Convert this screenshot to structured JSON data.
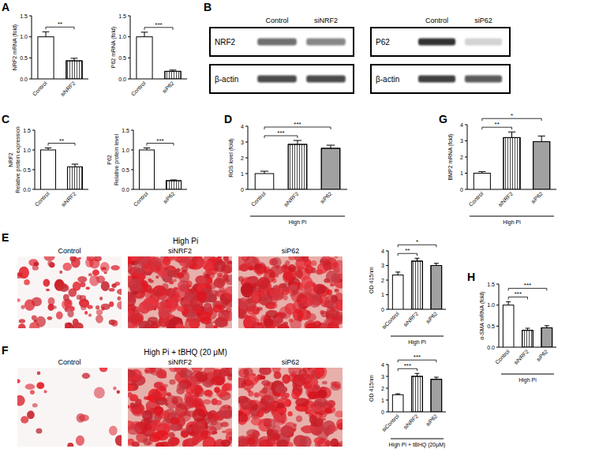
{
  "panel_letters": [
    "A",
    "B",
    "C",
    "D",
    "E",
    "F",
    "G",
    "H"
  ],
  "blots": [
    {
      "columns": [
        "Control",
        "siNRF2"
      ],
      "rows": [
        "NRF2",
        "β-actin"
      ]
    },
    {
      "columns": [
        "Control",
        "siP62"
      ],
      "rows": [
        "P62",
        "β-actin"
      ]
    }
  ],
  "stainings": [
    {
      "title": "High Pi",
      "columns": [
        "Control",
        "siNRF2",
        "siP62"
      ]
    },
    {
      "title": "High Pi + tBHQ (20 μM)",
      "columns": [
        "Control",
        "siNRF2",
        "siP62"
      ]
    }
  ],
  "chart_data": [
    {
      "type": "bar",
      "ylabel": "NRF2 mRNA (fold)",
      "categories": [
        "Control",
        "siNRF2"
      ],
      "values": [
        1.0,
        0.43
      ],
      "errors": [
        0.12,
        0.06
      ],
      "colors": [
        "#ffffff",
        "#ffffff"
      ],
      "ylim": [
        0,
        1.5
      ],
      "yticks": [
        {
          "value": 0,
          "label": "0.0"
        },
        {
          "value": 0.5,
          "label": "0.5"
        },
        {
          "value": 1,
          "label": "1.0"
        },
        {
          "value": 1.5,
          "label": "1.5"
        }
      ],
      "annotations": [
        {
          "text": "**",
          "from": 0,
          "to": 1
        }
      ]
    },
    {
      "type": "bar",
      "ylabel": "P62 mRNA (fold)",
      "categories": [
        "Control",
        "siP62"
      ],
      "values": [
        1.0,
        0.18
      ],
      "errors": [
        0.11,
        0.03
      ],
      "colors": [
        "#ffffff",
        "#ffffff"
      ],
      "ylim": [
        0,
        1.5
      ],
      "yticks": [
        {
          "value": 0,
          "label": "0.0"
        },
        {
          "value": 0.5,
          "label": "0.5"
        },
        {
          "value": 1,
          "label": "1.0"
        },
        {
          "value": 1.5,
          "label": "1.5"
        }
      ],
      "annotations": [
        {
          "text": "***",
          "from": 0,
          "to": 1
        }
      ]
    },
    {
      "type": "bar",
      "title": "NRF2",
      "ylabel": "Relative protein expression",
      "categories": [
        "Control",
        "siNRF2"
      ],
      "values": [
        1.0,
        0.57
      ],
      "errors": [
        0.05,
        0.07
      ],
      "colors": [
        "#ffffff",
        "#ffffff"
      ],
      "ylim": [
        0,
        1.5
      ],
      "yticks": [
        {
          "value": 0,
          "label": "0.0"
        },
        {
          "value": 0.5,
          "label": "0.5"
        },
        {
          "value": 1,
          "label": "1.0"
        },
        {
          "value": 1.5,
          "label": "1.5"
        }
      ],
      "annotations": [
        {
          "text": "**",
          "from": 0,
          "to": 1
        }
      ]
    },
    {
      "type": "bar",
      "title": "P62",
      "ylabel": "Relative protein level",
      "categories": [
        "Control",
        "siP62"
      ],
      "values": [
        1.0,
        0.22
      ],
      "errors": [
        0.05,
        0.02
      ],
      "colors": [
        "#ffffff",
        "#ffffff"
      ],
      "ylim": [
        0,
        1.5
      ],
      "yticks": [
        {
          "value": 0,
          "label": "0.0"
        },
        {
          "value": 0.5,
          "label": "0.5"
        },
        {
          "value": 1,
          "label": "1.0"
        },
        {
          "value": 1.5,
          "label": "1.5"
        }
      ],
      "annotations": [
        {
          "text": "***",
          "from": 0,
          "to": 1
        }
      ]
    },
    {
      "type": "bar",
      "ylabel": "ROS level (fold)",
      "xlabel": "High Pi",
      "categories": [
        "Control",
        "siNRF2",
        "siP62"
      ],
      "values": [
        1.0,
        2.85,
        2.6
      ],
      "errors": [
        0.15,
        0.25,
        0.2
      ],
      "colors": [
        "#ffffff",
        "#ffffff",
        "#ffffff"
      ],
      "ylim": [
        0,
        4
      ],
      "yticks": [
        0,
        1,
        2,
        3,
        4
      ],
      "annotations": [
        {
          "text": "***",
          "from": 0,
          "to": 1
        },
        {
          "text": "***",
          "from": 0,
          "to": 2
        }
      ]
    },
    {
      "type": "bar",
      "ylabel": "BMP2 mRNA (fold)",
      "xlabel": "High Pi",
      "categories": [
        "Control",
        "siNRF2",
        "siP62"
      ],
      "values": [
        1.0,
        3.2,
        2.95
      ],
      "errors": [
        0.1,
        0.35,
        0.35
      ],
      "colors": [
        "#ffffff",
        "#ffffff",
        "#ffffff"
      ],
      "ylim": [
        0,
        4
      ],
      "yticks": [
        0,
        1,
        2,
        3,
        4
      ],
      "annotations": [
        {
          "text": "**",
          "from": 0,
          "to": 1
        },
        {
          "text": "*",
          "from": 0,
          "to": 2
        }
      ]
    },
    {
      "type": "bar",
      "ylabel": "OD 415nm",
      "xlabel": "High Pi",
      "categories": [
        "siControl",
        "siNRF2",
        "siP62"
      ],
      "values": [
        2.35,
        3.3,
        3.0
      ],
      "errors": [
        0.2,
        0.2,
        0.15
      ],
      "colors": [
        "#ffffff",
        "#ffffff",
        "#ffffff"
      ],
      "ylim": [
        0,
        4
      ],
      "yticks": [
        0,
        1,
        2,
        3,
        4
      ],
      "annotations": [
        {
          "text": "**",
          "from": 0,
          "to": 1
        },
        {
          "text": "*",
          "from": 0,
          "to": 2
        }
      ]
    },
    {
      "type": "bar",
      "ylabel": "OD 415nm",
      "xlabel": "High Pi + tBHQ (20μM)",
      "categories": [
        "siControl",
        "siNRF2",
        "siP62"
      ],
      "values": [
        1.45,
        3.0,
        2.75
      ],
      "errors": [
        0.08,
        0.25,
        0.18
      ],
      "colors": [
        "#ffffff",
        "#ffffff",
        "#ffffff"
      ],
      "ylim": [
        0,
        4
      ],
      "yticks": [
        0,
        1,
        2,
        3,
        4
      ],
      "annotations": [
        {
          "text": "***",
          "from": 0,
          "to": 1
        },
        {
          "text": "***",
          "from": 0,
          "to": 2
        }
      ]
    },
    {
      "type": "bar",
      "ylabel": "α-SMA mRNA (fold)",
      "xlabel": "High Pi",
      "categories": [
        "Control",
        "siNRF2",
        "siP62"
      ],
      "values": [
        1.0,
        0.4,
        0.46
      ],
      "errors": [
        0.08,
        0.05,
        0.05
      ],
      "colors": [
        "#ffffff",
        "#ffffff",
        "#ffffff"
      ],
      "ylim": [
        0,
        1.5
      ],
      "yticks": [
        {
          "value": 0,
          "label": "0.0"
        },
        {
          "value": 0.5,
          "label": "0.5"
        },
        {
          "value": 1,
          "label": "1.0"
        },
        {
          "value": 1.5,
          "label": "1.5"
        }
      ],
      "annotations": [
        {
          "text": "***",
          "from": 0,
          "to": 1
        },
        {
          "text": "***",
          "from": 0,
          "to": 2
        }
      ]
    }
  ]
}
